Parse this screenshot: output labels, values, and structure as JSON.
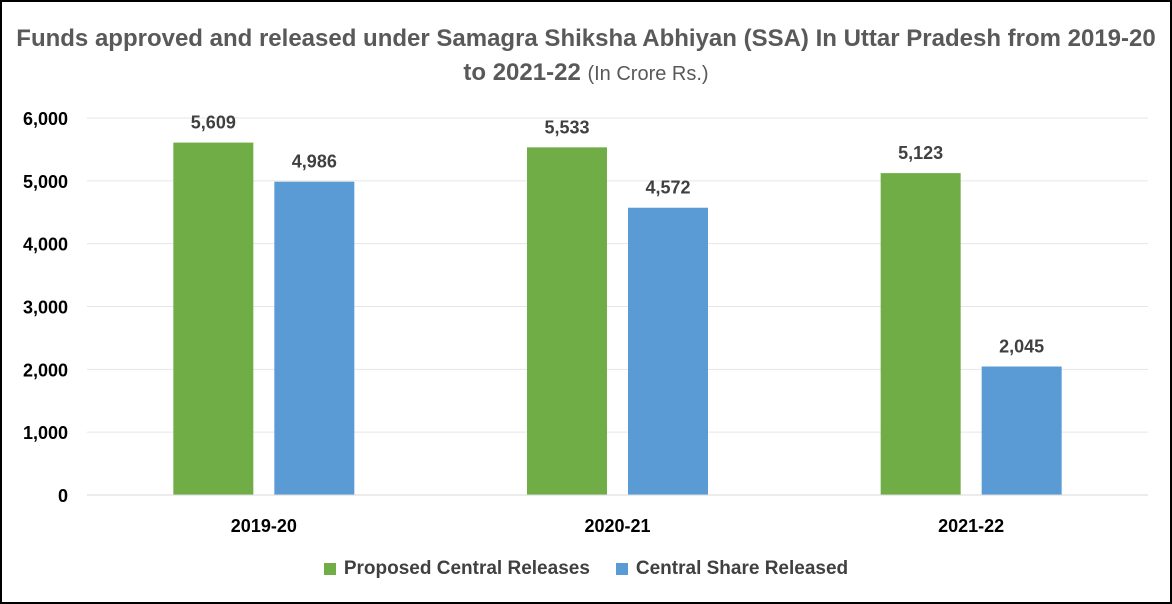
{
  "chart_data": {
    "type": "bar",
    "title": "Funds approved and released under Samagra Shiksha Abhiyan (SSA) In Uttar Pradesh from 2019-20 to 2021-22",
    "subtitle": "(In Crore Rs.)",
    "categories": [
      "2019-20",
      "2020-21",
      "2021-22"
    ],
    "series": [
      {
        "name": "Proposed Central Releases",
        "color": "#70AD47",
        "values": [
          5609,
          5533,
          5123
        ],
        "labels": [
          "5,609",
          "5,533",
          "5,123"
        ]
      },
      {
        "name": "Central Share Released",
        "color": "#5B9BD5",
        "values": [
          4986,
          4572,
          2045
        ],
        "labels": [
          "4,986",
          "4,572",
          "2,045"
        ]
      }
    ],
    "ylim": [
      0,
      6000
    ],
    "yticks": [
      0,
      1000,
      2000,
      3000,
      4000,
      5000,
      6000
    ],
    "ytick_labels": [
      "0",
      "1,000",
      "2,000",
      "3,000",
      "4,000",
      "5,000",
      "6,000"
    ],
    "grid": true,
    "legend_position": "bottom",
    "xlabel": "",
    "ylabel": ""
  }
}
